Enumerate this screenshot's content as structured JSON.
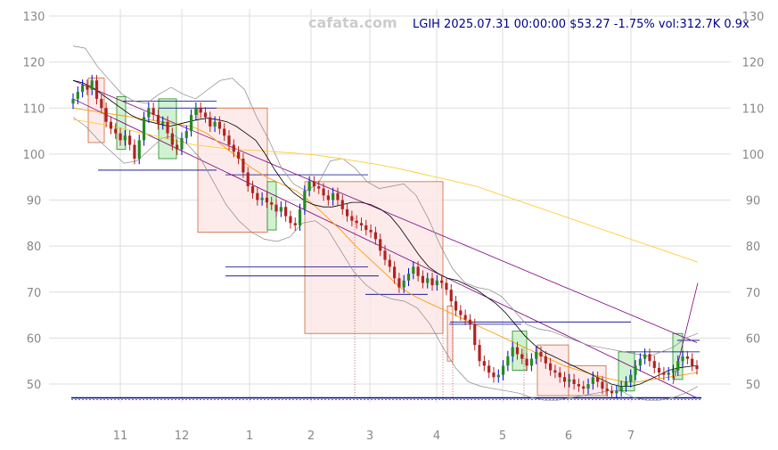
{
  "header": {
    "watermark": "cafata.com",
    "ticker_line": "LGIH 2025.07.31 00:00:00 $53.27 -1.75% vol:312.7K 0.9x"
  },
  "colors": {
    "up": "#228b22",
    "down": "#b22222",
    "wick_up": "#0000cd",
    "sma_short": "#000000",
    "sma_long": "#ffb300",
    "sma_mid": "#ff9900",
    "bollinger": "#888888",
    "trend_channel": "#800080",
    "support_lines": "#00008b",
    "box_down_fill": "#fde8e8",
    "box_down_stroke": "#cc6633",
    "box_up_fill": "#c8f0c8",
    "grid": "#dddddd"
  },
  "chart_data": {
    "type": "candlestick",
    "title": "",
    "y_ticks": [
      50,
      60,
      70,
      80,
      90,
      100,
      110,
      120,
      130
    ],
    "ylim": [
      45,
      131
    ],
    "x_tick_labels": [
      "11",
      "12",
      "1",
      "2",
      "3",
      "4",
      "5",
      "6",
      "7"
    ],
    "grid": true,
    "last_close": 53.27,
    "change_pct": -1.75,
    "volume": "312.7K",
    "closes": [
      112,
      113.5,
      115,
      114,
      116,
      112,
      110,
      107,
      105.5,
      104.5,
      103,
      104,
      102,
      99,
      103,
      108,
      110,
      108.5,
      106.5,
      107,
      104.5,
      102,
      101,
      103.5,
      105,
      108.5,
      110,
      109,
      108,
      106,
      107,
      105.5,
      104,
      102,
      100.5,
      99,
      96,
      93,
      91.5,
      90,
      90.5,
      89.5,
      89,
      87.5,
      88.5,
      86.5,
      85,
      84.5,
      88,
      92,
      94,
      93,
      92.5,
      91,
      90,
      91.5,
      90,
      88,
      86.5,
      85.5,
      85,
      84.5,
      83.5,
      83,
      81.5,
      79,
      77,
      75.5,
      73,
      71,
      72.5,
      74,
      75.5,
      73.5,
      72,
      73,
      71.5,
      72.5,
      72,
      70.5,
      68,
      66,
      65,
      64,
      63,
      58.5,
      55,
      54,
      52.5,
      51.5,
      52,
      54,
      56,
      58,
      56.5,
      55.5,
      54,
      55.5,
      57,
      56,
      54.5,
      53,
      52.5,
      51.5,
      50.5,
      51,
      50,
      49.5,
      49,
      50,
      51.5,
      50.5,
      49,
      48.5,
      48,
      48.5,
      49.5,
      50.5,
      52,
      54,
      55.5,
      56.5,
      55,
      53.5,
      52.5,
      52,
      52.5,
      53,
      55,
      56,
      55.5,
      54,
      53.27
    ],
    "sma_short": [
      116,
      115.5,
      114.5,
      113,
      111.5,
      110,
      108.5,
      107.5,
      107,
      106.5,
      106,
      106.5,
      107,
      107.5,
      107.8,
      107.5,
      107,
      106,
      104.5,
      103,
      100,
      96.5,
      93.5,
      91.5,
      90,
      89,
      88.5,
      88.5,
      89,
      89.5,
      89.5,
      89,
      88,
      86.5,
      84,
      81,
      78,
      75.5,
      74,
      73,
      72.5,
      71.5,
      70.5,
      69,
      67.5,
      65.5,
      63,
      60.5,
      58.5,
      57,
      56,
      55,
      54,
      53,
      52,
      51,
      50,
      49.5,
      49.5,
      50,
      51,
      52,
      53,
      53.5,
      53.8,
      54
    ],
    "sma_long": [
      107.5,
      106.8,
      106,
      105,
      104,
      103,
      102,
      101.5,
      101,
      100.8,
      100.5,
      100.2,
      99.8,
      99.2,
      98.5,
      97.8,
      97,
      96,
      95,
      94,
      93,
      91.5,
      90,
      88.5,
      87,
      85.5,
      84,
      82.5,
      81,
      79.5,
      78,
      76.5
    ],
    "sma_mid": [
      110,
      109.5,
      109,
      108.5,
      108,
      107.5,
      107,
      106.5,
      106,
      104.5,
      102,
      99.5,
      97,
      95,
      93.5,
      92,
      89.5,
      86.5,
      83.5,
      80,
      77,
      74,
      71,
      69,
      67.5,
      66,
      64.5,
      63,
      61.5,
      60,
      58.5,
      57,
      55.5,
      54,
      53,
      52,
      51.2,
      50.5,
      50.5,
      51,
      51.5,
      52,
      52.5
    ],
    "bollinger_upper": [
      123.5,
      123,
      119,
      116,
      113,
      111.5,
      111,
      113,
      114.5,
      113,
      112,
      114,
      116,
      116.5,
      114,
      108,
      103,
      97,
      93.5,
      92,
      93.5,
      98.5,
      99,
      97,
      94,
      92.5,
      93,
      93.5,
      91,
      86,
      80,
      75,
      72,
      71,
      70.5,
      69,
      66,
      63,
      62,
      61.5,
      60.5,
      59.5,
      58.5,
      58,
      57.5,
      57,
      56.5,
      56,
      57,
      58,
      60,
      61
    ],
    "bollinger_lower": [
      108,
      106,
      103,
      100.5,
      98,
      98.5,
      101,
      103.5,
      104,
      102,
      99,
      94,
      89,
      85.5,
      83,
      81.5,
      81,
      82,
      85,
      85.5,
      83.5,
      79,
      74.5,
      71.5,
      69.5,
      68.5,
      68,
      66.5,
      63,
      58,
      53.5,
      50.5,
      49.5,
      49,
      48.5,
      48,
      47,
      46.5,
      46.5,
      47,
      47.5,
      48,
      48.5,
      48.5,
      47,
      46.5,
      46.5,
      47,
      48,
      49.5
    ],
    "channel_upper": [
      [
        0,
        116
      ],
      [
        1,
        59
      ]
    ],
    "channel_lower": [
      [
        0,
        112
      ],
      [
        1,
        47
      ]
    ],
    "support_levels": [
      111.5,
      110,
      96.5,
      95.5,
      75.5,
      73.5,
      69.5,
      63.5,
      63,
      57,
      59.5
    ],
    "range_boxes": [
      {
        "kind": "down",
        "high": 116.5,
        "low": 102.5
      },
      {
        "kind": "up",
        "high": 112.5,
        "low": 101
      },
      {
        "kind": "up",
        "high": 112,
        "low": 99
      },
      {
        "kind": "down",
        "high": 110,
        "low": 83
      },
      {
        "kind": "up",
        "high": 94,
        "low": 83.5
      },
      {
        "kind": "down",
        "high": 94,
        "low": 61
      },
      {
        "kind": "down",
        "high": 67,
        "low": 55
      },
      {
        "kind": "up",
        "high": 61.5,
        "low": 53
      },
      {
        "kind": "down",
        "high": 58.5,
        "low": 47.5
      },
      {
        "kind": "down",
        "high": 54,
        "low": 47.5
      },
      {
        "kind": "up",
        "high": 57,
        "low": 48.5
      },
      {
        "kind": "up",
        "high": 61,
        "low": 51
      }
    ],
    "base_line": 47
  }
}
